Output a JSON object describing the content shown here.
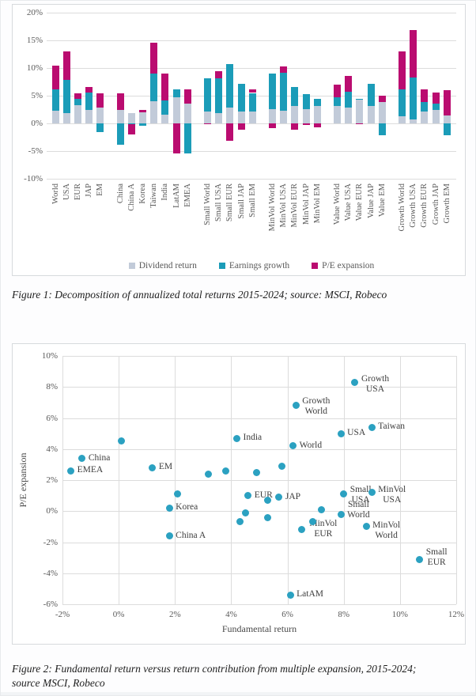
{
  "figure1": {
    "caption": "Figure 1: Decomposition of annualized total returns 2015-2024; source: MSCI, Robeco"
  },
  "figure2": {
    "caption_line1": "Figure 2: Fundamental return versus return contribution from multiple expansion, 2015-2024;",
    "caption_line2": "source MSCI, Robeco"
  },
  "colors": {
    "dividend": "#c2cbd9",
    "earnings": "#1b9cb8",
    "pe": "#ba0c70",
    "scatter_dot": "#2ba1c1",
    "gridline": "#dcdcdc"
  },
  "chart_data": [
    {
      "type": "bar",
      "stacked": true,
      "title": "",
      "categories": [
        "World",
        "USA",
        "EUR",
        "JAP",
        "EM",
        "China",
        "China A",
        "Korea",
        "Taiwan",
        "India",
        "LatAM",
        "EMEA",
        "Small World",
        "Small USA",
        "Small EUR",
        "Small JAP",
        "Small EM",
        "MinVol World",
        "MinVol USA",
        "MinVol EUR",
        "MinVol JAP",
        "MinVol EM",
        "Value World",
        "Value USA",
        "Value EUR",
        "Value JAP",
        "Value EM",
        "Growth World",
        "Growth USA",
        "Growth EUR",
        "Growth JAP",
        "Growth EM"
      ],
      "group_starts": [
        5,
        12,
        17,
        22,
        27
      ],
      "series": [
        {
          "name": "Dividend return",
          "color": "#c2cbd9",
          "values": [
            2.3,
            1.9,
            3.3,
            2.4,
            2.9,
            2.4,
            1.9,
            2.0,
            4.0,
            1.6,
            4.7,
            3.6,
            2.2,
            1.8,
            2.8,
            2.2,
            2.2,
            2.6,
            2.3,
            3.1,
            2.6,
            3.1,
            3.2,
            2.8,
            4.4,
            3.1,
            3.8,
            1.3,
            0.7,
            2.1,
            2.4,
            1.4
          ]
        },
        {
          "name": "Earnings growth",
          "color": "#1b9cb8",
          "values": [
            3.9,
            6.0,
            1.2,
            3.2,
            -1.5,
            -3.8,
            -0.1,
            -0.4,
            5.0,
            2.6,
            1.4,
            -5.4,
            5.9,
            6.3,
            7.9,
            4.9,
            3.3,
            6.4,
            6.9,
            3.5,
            2.7,
            1.3,
            1.5,
            2.9,
            0.1,
            4.0,
            -2.2,
            4.8,
            7.6,
            1.7,
            1.2,
            -2.1
          ]
        },
        {
          "name": "P/E expansion",
          "color": "#ba0c70",
          "values": [
            4.2,
            5.1,
            1.0,
            1.0,
            2.6,
            3.1,
            -1.9,
            0.4,
            5.6,
            4.8,
            -5.4,
            2.6,
            -0.2,
            1.3,
            -3.2,
            -1.1,
            0.7,
            -0.8,
            1.1,
            -1.2,
            -0.3,
            -0.7,
            2.3,
            2.9,
            -0.1,
            0.0,
            1.2,
            6.9,
            8.5,
            2.4,
            2.0,
            4.6
          ]
        }
      ],
      "ylim": [
        -10,
        20
      ],
      "ytick_step": 5,
      "tick_suffix": "%",
      "grid": true,
      "legend_position": "bottom",
      "xlabel": "",
      "ylabel": ""
    },
    {
      "type": "scatter",
      "title": "",
      "xlabel": "Fundamental return",
      "ylabel": "P/E expansion",
      "xlim": [
        -2,
        12
      ],
      "xtick_step": 2,
      "ylim": [
        -6,
        10
      ],
      "ytick_step": 2,
      "tick_suffix": "%",
      "grid": true,
      "points": [
        {
          "label": "World",
          "x": 6.2,
          "y": 4.2
        },
        {
          "label": "USA",
          "x": 7.9,
          "y": 5.0
        },
        {
          "label": "EUR",
          "x": 4.6,
          "y": 1.0
        },
        {
          "label": "JAP",
          "x": 5.7,
          "y": 0.9
        },
        {
          "label": "EM",
          "x": 1.2,
          "y": 2.8
        },
        {
          "label": "China",
          "x": -1.3,
          "y": 3.4
        },
        {
          "label": "China A",
          "x": 1.8,
          "y": -1.6
        },
        {
          "label": "Korea",
          "x": 1.8,
          "y": 0.2
        },
        {
          "label": "Taiwan",
          "x": 9.0,
          "y": 5.4
        },
        {
          "label": "India",
          "x": 4.2,
          "y": 4.7
        },
        {
          "label": "LatAM",
          "x": 6.1,
          "y": -5.4
        },
        {
          "label": "EMEA",
          "x": -1.7,
          "y": 2.6
        },
        {
          "label": "Small\nWorld",
          "x": 7.9,
          "y": -0.2,
          "dy": -18
        },
        {
          "label": "Small\nUSA",
          "x": 8.0,
          "y": 1.1,
          "dy": -12
        },
        {
          "label": "Small\nEUR",
          "x": 10.7,
          "y": -3.1,
          "dy": -15
        },
        {
          "label": "MinVol\nWorld",
          "x": 8.8,
          "y": -1.0,
          "dy": -8
        },
        {
          "label": "MinVol\nUSA",
          "x": 9.0,
          "y": 1.2,
          "dy": -10
        },
        {
          "label": "MinVol\nEUR",
          "x": 6.5,
          "y": -1.2,
          "dx": 10,
          "dy": -14
        },
        {
          "label": "Growth\nWorld",
          "x": 6.3,
          "y": 6.8,
          "dy": -12
        },
        {
          "label": "Growth\nUSA",
          "x": 8.4,
          "y": 8.3,
          "dy": -10
        },
        {
          "label": "",
          "x": 0.1,
          "y": 4.5
        },
        {
          "label": "",
          "x": 3.2,
          "y": 2.4
        },
        {
          "label": "",
          "x": 3.8,
          "y": 2.6
        },
        {
          "label": "",
          "x": 2.1,
          "y": 1.1
        },
        {
          "label": "",
          "x": 5.8,
          "y": 2.9
        },
        {
          "label": "",
          "x": 4.9,
          "y": 2.5
        },
        {
          "label": "",
          "x": 4.5,
          "y": -0.1
        },
        {
          "label": "",
          "x": 7.2,
          "y": 0.1
        },
        {
          "label": "",
          "x": 4.3,
          "y": -0.7
        },
        {
          "label": "",
          "x": 5.3,
          "y": -0.4
        },
        {
          "label": "",
          "x": 6.9,
          "y": -0.7
        },
        {
          "label": "",
          "x": 5.3,
          "y": 0.7
        }
      ]
    }
  ]
}
